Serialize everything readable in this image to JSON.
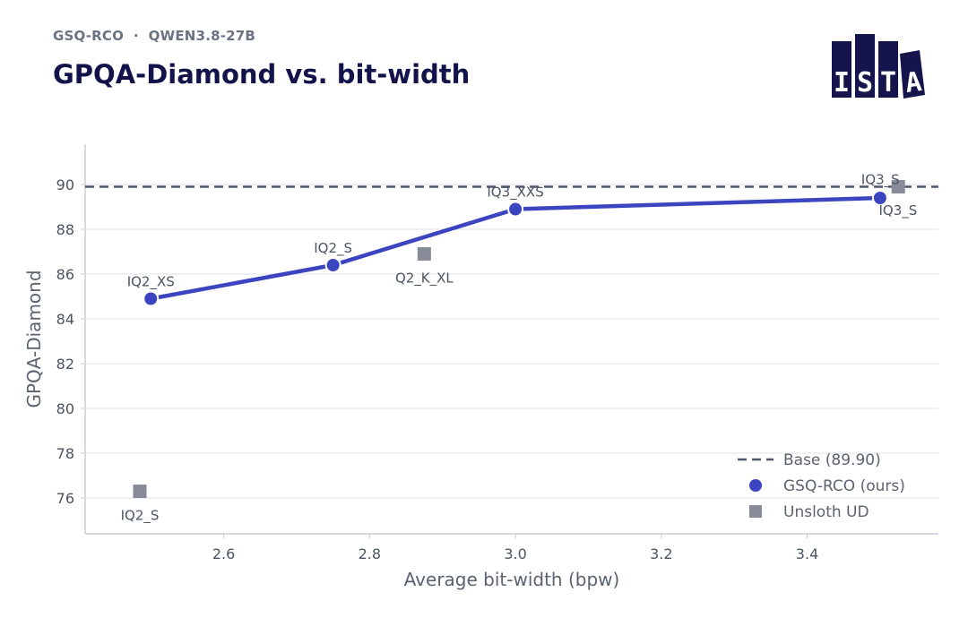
{
  "header": {
    "supertitle": "GSQ-RCO  ·  QWEN3.8-27B",
    "title": "GPQA-Diamond vs. bit-width"
  },
  "logo": {
    "letters": [
      "I",
      "S",
      "T",
      "A"
    ],
    "color": "#15144d"
  },
  "colors": {
    "ours": "#3b45c0",
    "unsloth": "#888c98",
    "base": "#4f566b",
    "axis_text": "#4b5563",
    "grid": "#e8e8ec"
  },
  "chart_data": {
    "type": "scatter",
    "xlabel": "Average bit-width (bpw)",
    "ylabel": "GPQA-Diamond",
    "xlim": [
      2.41,
      3.58
    ],
    "ylim": [
      74.4,
      91.8
    ],
    "xticks": [
      2.6,
      2.8,
      3.0,
      3.2,
      3.4
    ],
    "yticks": [
      76,
      78,
      80,
      82,
      84,
      86,
      88,
      90
    ],
    "grid": "horizontal",
    "legend_position": "bottom-right",
    "baseline": {
      "name": "Base (89.90)",
      "value": 89.9
    },
    "series": [
      {
        "name": "GSQ-RCO (ours)",
        "marker": "circle",
        "connected": true,
        "points": [
          {
            "x": 2.5,
            "y": 84.9,
            "label": "IQ2_XS"
          },
          {
            "x": 2.75,
            "y": 86.4,
            "label": "IQ2_S"
          },
          {
            "x": 3.0,
            "y": 88.9,
            "label": "IQ3_XXS"
          },
          {
            "x": 3.5,
            "y": 89.4,
            "label": "IQ3_S"
          }
        ]
      },
      {
        "name": "Unsloth UD",
        "marker": "square",
        "connected": false,
        "points": [
          {
            "x": 2.485,
            "y": 76.3,
            "label": "IQ2_S"
          },
          {
            "x": 2.875,
            "y": 86.9,
            "label": "Q2_K_XL"
          },
          {
            "x": 3.525,
            "y": 89.9,
            "label": "IQ3_S"
          }
        ]
      }
    ]
  }
}
